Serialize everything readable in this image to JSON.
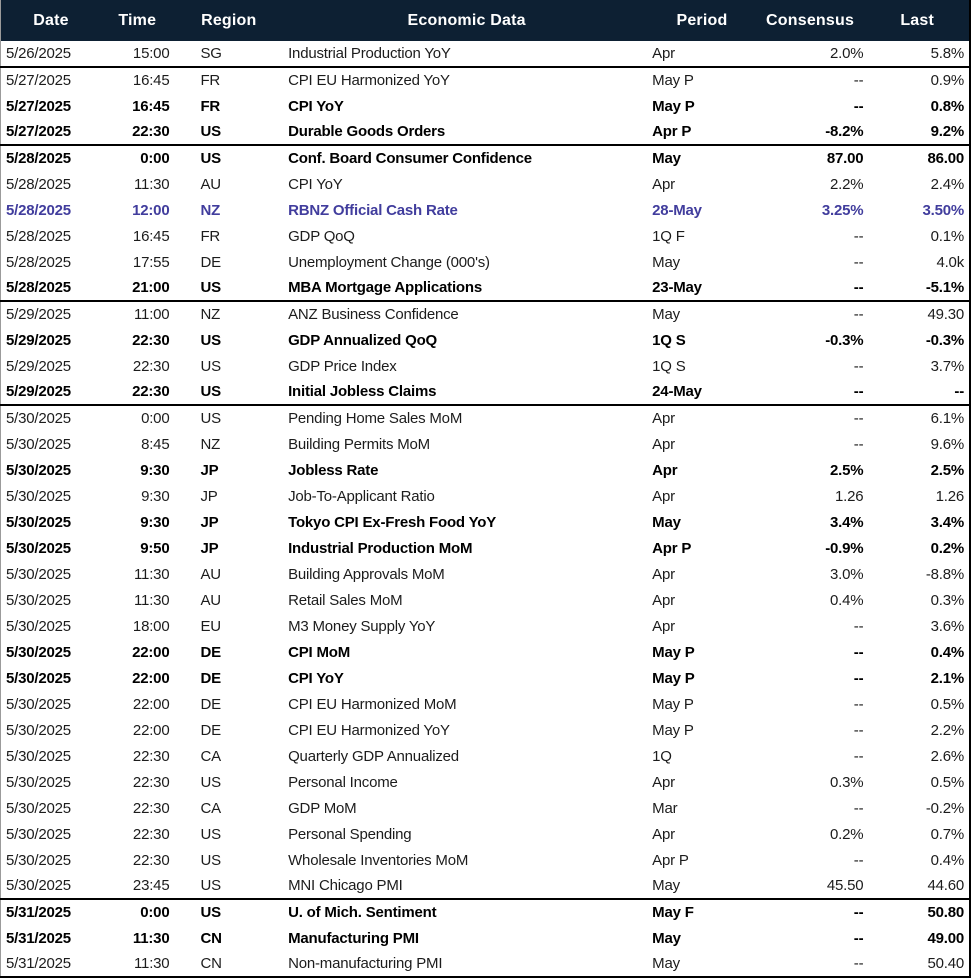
{
  "colors": {
    "header_bg": "#0d2033",
    "header_text": "#ffffff",
    "highlight_text": "#413d9d",
    "group_border": "#000000"
  },
  "table": {
    "columns": [
      {
        "key": "date",
        "label": "Date"
      },
      {
        "key": "time",
        "label": "Time"
      },
      {
        "key": "region",
        "label": "Region"
      },
      {
        "key": "event",
        "label": "Economic Data"
      },
      {
        "key": "period",
        "label": "Period"
      },
      {
        "key": "consensus",
        "label": "Consensus"
      },
      {
        "key": "last",
        "label": "Last"
      }
    ],
    "rows": [
      {
        "date": "5/26/2025",
        "time": "15:00",
        "region": "SG",
        "event": "Industrial Production YoY",
        "period": "Apr",
        "consensus": "2.0%",
        "last": "5.8%",
        "style": "normal",
        "group_start": false
      },
      {
        "date": "5/27/2025",
        "time": "16:45",
        "region": "FR",
        "event": "CPI EU Harmonized YoY",
        "period": "May P",
        "consensus": "--",
        "last": "0.9%",
        "style": "normal",
        "group_start": true
      },
      {
        "date": "5/27/2025",
        "time": "16:45",
        "region": "FR",
        "event": "CPI YoY",
        "period": "May P",
        "consensus": "--",
        "last": "0.8%",
        "style": "bold",
        "group_start": false
      },
      {
        "date": "5/27/2025",
        "time": "22:30",
        "region": "US",
        "event": "Durable Goods Orders",
        "period": "Apr P",
        "consensus": "-8.2%",
        "last": "9.2%",
        "style": "bold",
        "group_start": false
      },
      {
        "date": "5/28/2025",
        "time": "0:00",
        "region": "US",
        "event": "Conf. Board Consumer Confidence",
        "period": "May",
        "consensus": "87.00",
        "last": "86.00",
        "style": "bold",
        "group_start": true
      },
      {
        "date": "5/28/2025",
        "time": "11:30",
        "region": "AU",
        "event": "CPI YoY",
        "period": "Apr",
        "consensus": "2.2%",
        "last": "2.4%",
        "style": "normal",
        "group_start": false
      },
      {
        "date": "5/28/2025",
        "time": "12:00",
        "region": "NZ",
        "event": "RBNZ Official Cash Rate",
        "period": "28-May",
        "consensus": "3.25%",
        "last": "3.50%",
        "style": "highlight",
        "group_start": false
      },
      {
        "date": "5/28/2025",
        "time": "16:45",
        "region": "FR",
        "event": "GDP QoQ",
        "period": "1Q F",
        "consensus": "--",
        "last": "0.1%",
        "style": "normal",
        "group_start": false
      },
      {
        "date": "5/28/2025",
        "time": "17:55",
        "region": "DE",
        "event": "Unemployment Change (000's)",
        "period": "May",
        "consensus": "--",
        "last": "4.0k",
        "style": "normal",
        "group_start": false
      },
      {
        "date": "5/28/2025",
        "time": "21:00",
        "region": "US",
        "event": "MBA Mortgage Applications",
        "period": "23-May",
        "consensus": "--",
        "last": "-5.1%",
        "style": "bold",
        "group_start": false
      },
      {
        "date": "5/29/2025",
        "time": "11:00",
        "region": "NZ",
        "event": "ANZ Business Confidence",
        "period": "May",
        "consensus": "--",
        "last": "49.30",
        "style": "normal",
        "group_start": true
      },
      {
        "date": "5/29/2025",
        "time": "22:30",
        "region": "US",
        "event": "GDP Annualized QoQ",
        "period": "1Q S",
        "consensus": "-0.3%",
        "last": "-0.3%",
        "style": "bold",
        "group_start": false
      },
      {
        "date": "5/29/2025",
        "time": "22:30",
        "region": "US",
        "event": "GDP Price Index",
        "period": "1Q S",
        "consensus": "--",
        "last": "3.7%",
        "style": "normal",
        "group_start": false
      },
      {
        "date": "5/29/2025",
        "time": "22:30",
        "region": "US",
        "event": "Initial Jobless Claims",
        "period": "24-May",
        "consensus": "--",
        "last": "--",
        "style": "bold",
        "group_start": false
      },
      {
        "date": "5/30/2025",
        "time": "0:00",
        "region": "US",
        "event": "Pending Home Sales MoM",
        "period": "Apr",
        "consensus": "--",
        "last": "6.1%",
        "style": "normal",
        "group_start": true
      },
      {
        "date": "5/30/2025",
        "time": "8:45",
        "region": "NZ",
        "event": "Building Permits MoM",
        "period": "Apr",
        "consensus": "--",
        "last": "9.6%",
        "style": "normal",
        "group_start": false
      },
      {
        "date": "5/30/2025",
        "time": "9:30",
        "region": "JP",
        "event": "Jobless Rate",
        "period": "Apr",
        "consensus": "2.5%",
        "last": "2.5%",
        "style": "bold",
        "group_start": false
      },
      {
        "date": "5/30/2025",
        "time": "9:30",
        "region": "JP",
        "event": "Job-To-Applicant Ratio",
        "period": "Apr",
        "consensus": "1.26",
        "last": "1.26",
        "style": "normal",
        "group_start": false
      },
      {
        "date": "5/30/2025",
        "time": "9:30",
        "region": "JP",
        "event": "Tokyo CPI Ex-Fresh Food YoY",
        "period": "May",
        "consensus": "3.4%",
        "last": "3.4%",
        "style": "bold",
        "group_start": false
      },
      {
        "date": "5/30/2025",
        "time": "9:50",
        "region": "JP",
        "event": "Industrial Production MoM",
        "period": "Apr P",
        "consensus": "-0.9%",
        "last": "0.2%",
        "style": "bold",
        "group_start": false
      },
      {
        "date": "5/30/2025",
        "time": "11:30",
        "region": "AU",
        "event": "Building Approvals MoM",
        "period": "Apr",
        "consensus": "3.0%",
        "last": "-8.8%",
        "style": "normal",
        "group_start": false
      },
      {
        "date": "5/30/2025",
        "time": "11:30",
        "region": "AU",
        "event": "Retail Sales MoM",
        "period": "Apr",
        "consensus": "0.4%",
        "last": "0.3%",
        "style": "normal",
        "group_start": false
      },
      {
        "date": "5/30/2025",
        "time": "18:00",
        "region": "EU",
        "event": "M3 Money Supply YoY",
        "period": "Apr",
        "consensus": "--",
        "last": "3.6%",
        "style": "normal",
        "group_start": false
      },
      {
        "date": "5/30/2025",
        "time": "22:00",
        "region": "DE",
        "event": "CPI MoM",
        "period": "May P",
        "consensus": "--",
        "last": "0.4%",
        "style": "bold",
        "group_start": false
      },
      {
        "date": "5/30/2025",
        "time": "22:00",
        "region": "DE",
        "event": "CPI YoY",
        "period": "May P",
        "consensus": "--",
        "last": "2.1%",
        "style": "bold",
        "group_start": false
      },
      {
        "date": "5/30/2025",
        "time": "22:00",
        "region": "DE",
        "event": "CPI EU Harmonized MoM",
        "period": "May P",
        "consensus": "--",
        "last": "0.5%",
        "style": "normal",
        "group_start": false
      },
      {
        "date": "5/30/2025",
        "time": "22:00",
        "region": "DE",
        "event": "CPI EU Harmonized YoY",
        "period": "May P",
        "consensus": "--",
        "last": "2.2%",
        "style": "normal",
        "group_start": false
      },
      {
        "date": "5/30/2025",
        "time": "22:30",
        "region": "CA",
        "event": "Quarterly GDP Annualized",
        "period": "1Q",
        "consensus": "--",
        "last": "2.6%",
        "style": "normal",
        "group_start": false
      },
      {
        "date": "5/30/2025",
        "time": "22:30",
        "region": "US",
        "event": "Personal Income",
        "period": "Apr",
        "consensus": "0.3%",
        "last": "0.5%",
        "style": "normal",
        "group_start": false
      },
      {
        "date": "5/30/2025",
        "time": "22:30",
        "region": "CA",
        "event": "GDP MoM",
        "period": "Mar",
        "consensus": "--",
        "last": "-0.2%",
        "style": "normal",
        "group_start": false
      },
      {
        "date": "5/30/2025",
        "time": "22:30",
        "region": "US",
        "event": "Personal Spending",
        "period": "Apr",
        "consensus": "0.2%",
        "last": "0.7%",
        "style": "normal",
        "group_start": false
      },
      {
        "date": "5/30/2025",
        "time": "22:30",
        "region": "US",
        "event": "Wholesale Inventories MoM",
        "period": "Apr P",
        "consensus": "--",
        "last": "0.4%",
        "style": "normal",
        "group_start": false
      },
      {
        "date": "5/30/2025",
        "time": "23:45",
        "region": "US",
        "event": "MNI Chicago PMI",
        "period": "May",
        "consensus": "45.50",
        "last": "44.60",
        "style": "normal",
        "group_start": false
      },
      {
        "date": "5/31/2025",
        "time": "0:00",
        "region": "US",
        "event": "U. of Mich. Sentiment",
        "period": "May F",
        "consensus": "--",
        "last": "50.80",
        "style": "bold",
        "group_start": true
      },
      {
        "date": "5/31/2025",
        "time": "11:30",
        "region": "CN",
        "event": "Manufacturing PMI",
        "period": "May",
        "consensus": "--",
        "last": "49.00",
        "style": "bold",
        "group_start": false
      },
      {
        "date": "5/31/2025",
        "time": "11:30",
        "region": "CN",
        "event": "Non-manufacturing PMI",
        "period": "May",
        "consensus": "--",
        "last": "50.40",
        "style": "normal",
        "group_start": false
      }
    ]
  }
}
